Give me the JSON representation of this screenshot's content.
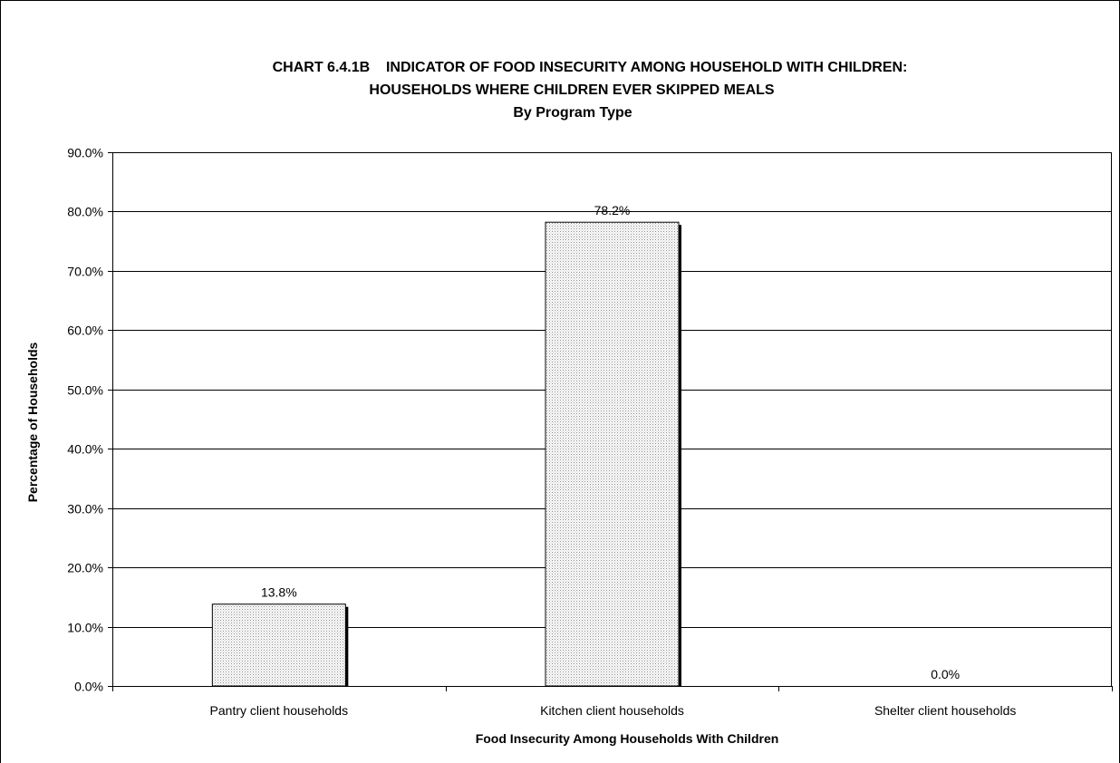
{
  "chart_data": {
    "type": "bar",
    "title": "CHART 6.4.1B    INDICATOR OF FOOD INSECURITY AMONG HOUSEHOLD WITH CHILDREN:",
    "title_line2": "HOUSEHOLDS WHERE CHILDREN EVER SKIPPED MEALS",
    "subtitle": "By Program Type",
    "xlabel": "Food Insecurity Among Households With Children",
    "ylabel": "Percentage of Households",
    "categories": [
      "Pantry client households",
      "Kitchen client households",
      "Shelter client households"
    ],
    "values": [
      13.8,
      78.2,
      0.0
    ],
    "data_labels": [
      "13.8%",
      "78.2%",
      "0.0%"
    ],
    "ylim": [
      0,
      90
    ],
    "yticks": [
      0,
      10,
      20,
      30,
      40,
      50,
      60,
      70,
      80,
      90
    ],
    "ytick_labels": [
      "0.0%",
      "10.0%",
      "20.0%",
      "30.0%",
      "40.0%",
      "50.0%",
      "60.0%",
      "70.0%",
      "80.0%",
      "90.0%"
    ],
    "grid": true,
    "legend": "none",
    "bar_fill": "#ffffff",
    "bar_pattern_color": "#888888",
    "bar_edge_color": "#000000"
  }
}
